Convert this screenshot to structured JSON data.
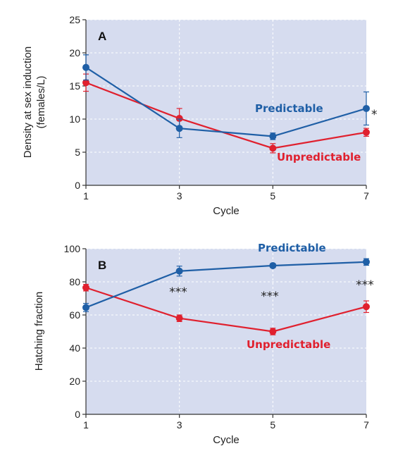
{
  "colors": {
    "predictable": "#1f5fa6",
    "unpredictable": "#e0202e",
    "plot_bg": "#d6dcef"
  },
  "chart_data": [
    {
      "type": "line",
      "panel_label": "A",
      "xlabel": "Cycle",
      "ylabel": "Density at sex induction (females/L)",
      "ylabel_lines": [
        "Density at sex induction",
        "(females/L)"
      ],
      "x": [
        1,
        3,
        5,
        7
      ],
      "xticks": [
        "1",
        "3",
        "5",
        "7"
      ],
      "xlim": [
        1,
        7
      ],
      "ylim": [
        0,
        25
      ],
      "yticks": [
        "0",
        "5",
        "10",
        "15",
        "20",
        "25"
      ],
      "grid": true,
      "series": [
        {
          "name": "Predictable",
          "color": "#1f5fa6",
          "values": [
            17.8,
            8.6,
            7.4,
            11.6
          ],
          "errors": [
            1.9,
            1.4,
            0.5,
            2.5
          ]
        },
        {
          "name": "Unpredictable",
          "color": "#e0202e",
          "values": [
            15.5,
            10.1,
            5.6,
            8.0
          ],
          "errors": [
            1.3,
            1.5,
            0.7,
            0.6
          ]
        }
      ],
      "annotations": [
        {
          "x": 7,
          "text": "*"
        }
      ]
    },
    {
      "type": "line",
      "panel_label": "B",
      "xlabel": "Cycle",
      "ylabel": "Hatching fraction",
      "ylabel_lines": [
        "Hatching fraction"
      ],
      "x": [
        1,
        3,
        5,
        7
      ],
      "xticks": [
        "1",
        "3",
        "5",
        "7"
      ],
      "xlim": [
        1,
        7
      ],
      "ylim": [
        0,
        100
      ],
      "yticks": [
        "0",
        "20",
        "40",
        "60",
        "80",
        "100"
      ],
      "grid": true,
      "series": [
        {
          "name": "Predictable",
          "color": "#1f5fa6",
          "values": [
            64.5,
            86.5,
            89.8,
            92.0
          ],
          "errors": [
            2.5,
            3.0,
            1.2,
            2.0
          ]
        },
        {
          "name": "Unpredictable",
          "color": "#e0202e",
          "values": [
            76.5,
            58.0,
            50.0,
            65.0
          ],
          "errors": [
            2.0,
            2.0,
            2.0,
            3.5
          ]
        }
      ],
      "annotations": [
        {
          "x": 3,
          "text": "***"
        },
        {
          "x": 5,
          "text": "***"
        },
        {
          "x": 7,
          "text": "***"
        }
      ]
    }
  ]
}
